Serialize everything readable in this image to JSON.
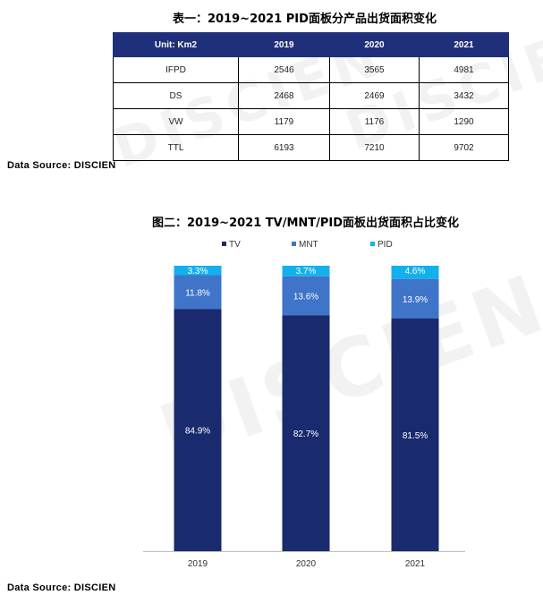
{
  "table": {
    "title": "表一：2019~2021 PID面板分产品出货面积变化",
    "headers": [
      "Unit: Km2",
      "2019",
      "2020",
      "2021"
    ],
    "rows": [
      [
        "IFPD",
        "2546",
        "3565",
        "4981"
      ],
      [
        "DS",
        "2468",
        "2469",
        "3432"
      ],
      [
        "VW",
        "1179",
        "1176",
        "1290"
      ],
      [
        "TTL",
        "6193",
        "7210",
        "9702"
      ]
    ]
  },
  "source_label": "Data Source: DISCIEN",
  "watermark": "DISCIEN",
  "colors": {
    "TV": "#1a2a6e",
    "MNT": "#3f74c8",
    "PID": "#13b0ee",
    "header": "#1f2f7a"
  },
  "chart_data": {
    "type": "bar",
    "stacked": true,
    "percent": true,
    "title": "图二：2019~2021 TV/MNT/PID面板出货面积占比变化",
    "categories": [
      "2019",
      "2020",
      "2021"
    ],
    "series": [
      {
        "name": "TV",
        "values": [
          84.9,
          82.7,
          81.5
        ],
        "labels": [
          "84.9%",
          "82.7%",
          "81.5%"
        ]
      },
      {
        "name": "MNT",
        "values": [
          11.8,
          13.6,
          13.9
        ],
        "labels": [
          "11.8%",
          "13.6%",
          "13.9%"
        ]
      },
      {
        "name": "PID",
        "values": [
          3.3,
          3.7,
          4.6
        ],
        "labels": [
          "3.3%",
          "3.7%",
          "4.6%"
        ]
      }
    ],
    "ylim": [
      0,
      100
    ],
    "legend": "top",
    "grid": false
  }
}
